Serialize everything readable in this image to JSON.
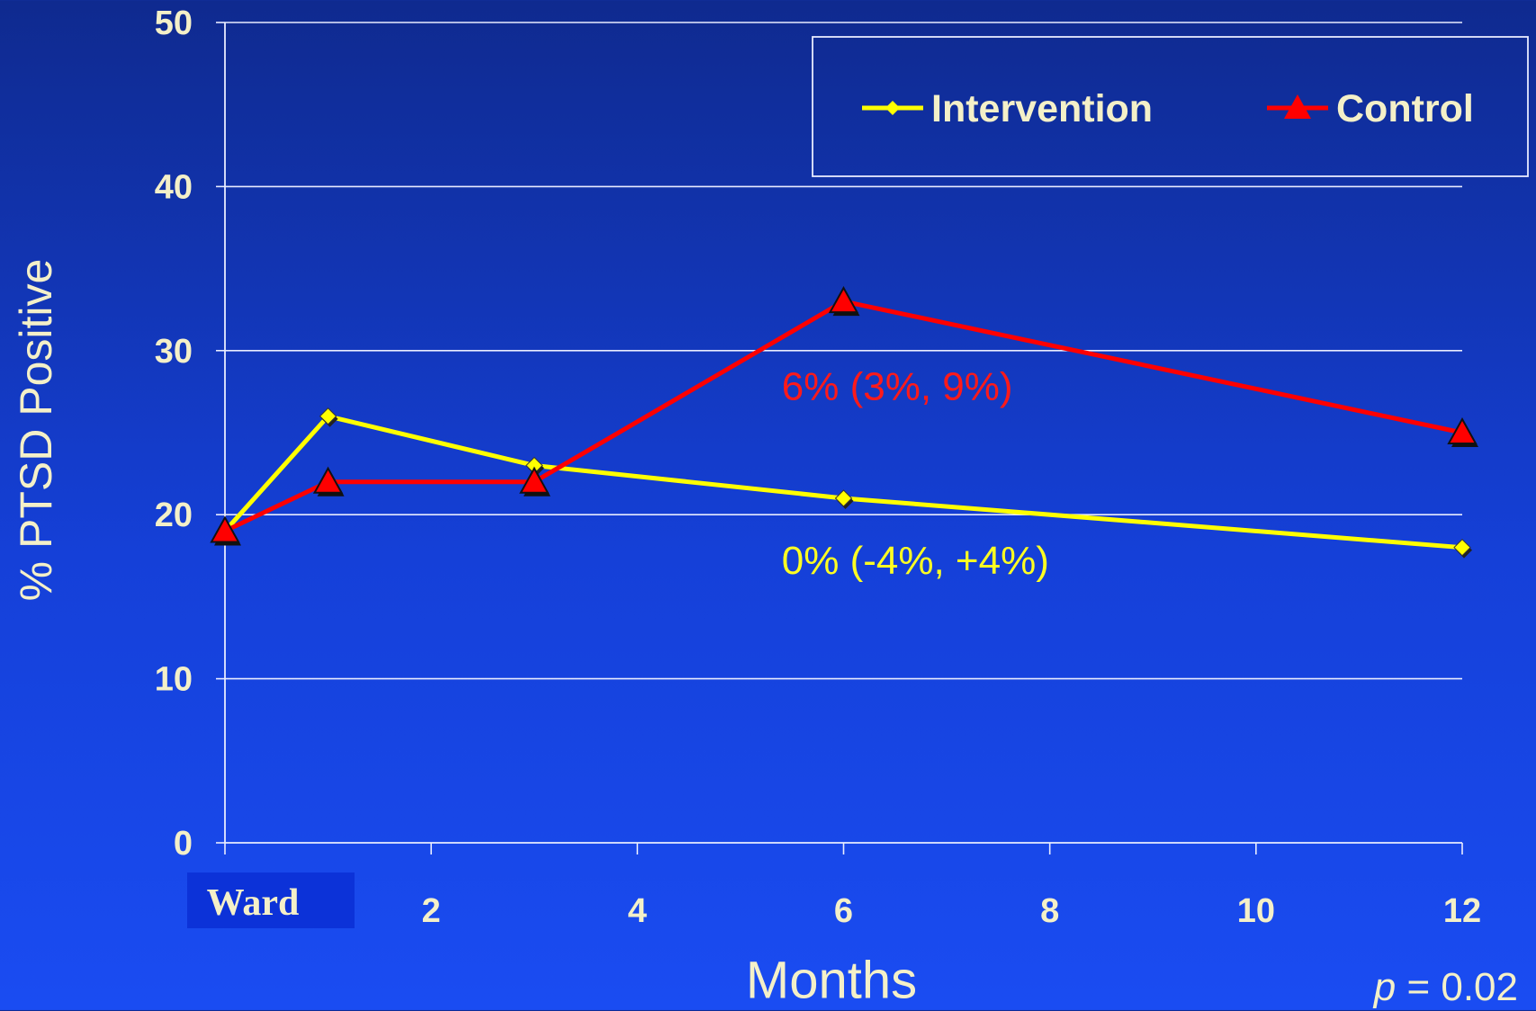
{
  "chart_data": {
    "type": "line",
    "x": [
      "Ward",
      1,
      3,
      6,
      12
    ],
    "x_numeric": [
      0,
      1,
      3,
      6,
      12
    ],
    "xticks": [
      "Ward",
      "2",
      "4",
      "6",
      "8",
      "10",
      "12"
    ],
    "xtick_values": [
      0,
      2,
      4,
      6,
      8,
      10,
      12
    ],
    "xlim": [
      0,
      12
    ],
    "ylim": [
      0,
      50
    ],
    "yticks": [
      "0",
      "10",
      "20",
      "30",
      "40",
      "50"
    ],
    "ytick_values": [
      0,
      10,
      20,
      30,
      40,
      50
    ],
    "xlabel": "Months",
    "ylabel": "% PTSD Positive",
    "grid": true,
    "legend_position": "top-right",
    "series": [
      {
        "name": "Intervention",
        "color": "#ffff00",
        "marker": "diamond",
        "values": [
          19,
          26,
          23,
          21,
          18
        ]
      },
      {
        "name": "Control",
        "color": "#ff0000",
        "marker": "triangle",
        "values": [
          19,
          22,
          22,
          33,
          25
        ]
      }
    ],
    "annotations": [
      {
        "text": "6% (3%, 9%)",
        "color": "#ff1a1a",
        "x": 5.4,
        "y": 27
      },
      {
        "text": "0% (-4%, +4%)",
        "color": "#ffff22",
        "x": 5.4,
        "y": 16.4
      }
    ]
  },
  "footer": {
    "p_symbol": "p",
    "p_equals": " =  0.02"
  }
}
